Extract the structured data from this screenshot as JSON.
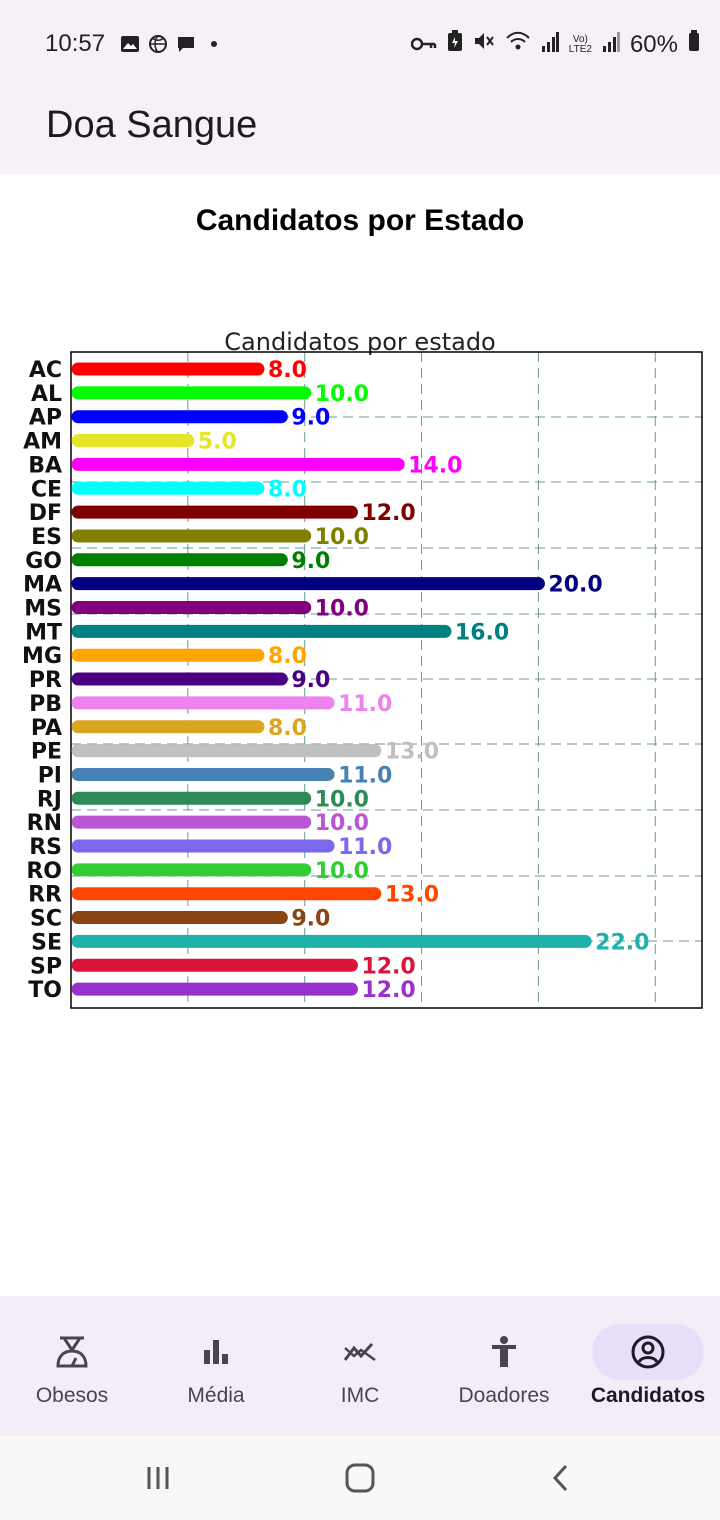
{
  "status_bar": {
    "time": "10:57",
    "battery": "60%",
    "icons": [
      "image-icon",
      "basketball-icon",
      "chat-icon",
      "dot-icon",
      "key-icon",
      "battery-saver-icon",
      "mute-icon",
      "wifi-icon",
      "signal-icon",
      "volte-icon",
      "signal2-icon",
      "battery-icon"
    ]
  },
  "app": {
    "title": "Doa Sangue"
  },
  "page": {
    "title": "Candidatos por Estado"
  },
  "chart_data": {
    "type": "bar",
    "orientation": "horizontal",
    "title": "Candidatos por estado",
    "categories": [
      "AC",
      "AL",
      "AP",
      "AM",
      "BA",
      "CE",
      "DF",
      "ES",
      "GO",
      "MA",
      "MS",
      "MT",
      "MG",
      "PR",
      "PB",
      "PA",
      "PE",
      "PI",
      "RJ",
      "RN",
      "RS",
      "RO",
      "RR",
      "SC",
      "SE",
      "SP",
      "TO"
    ],
    "values": [
      8,
      10,
      9,
      5,
      14,
      8,
      12,
      10,
      9,
      20,
      10,
      16,
      8,
      9,
      11,
      8,
      13,
      11,
      10,
      10,
      11,
      10,
      13,
      9,
      22,
      12,
      12
    ],
    "value_labels": [
      "8.0",
      "10.0",
      "9.0",
      "5.0",
      "14.0",
      "8.0",
      "12.0",
      "10.0",
      "9.0",
      "20.0",
      "10.0",
      "16.0",
      "8.0",
      "9.0",
      "11.0",
      "8.0",
      "13.0",
      "11.0",
      "10.0",
      "10.0",
      "11.0",
      "10.0",
      "13.0",
      "9.0",
      "22.0",
      "12.0",
      "12.0"
    ],
    "colors": [
      "#ff0000",
      "#00ff00",
      "#0000ff",
      "#e5e52a",
      "#ff00ff",
      "#00ffff",
      "#800000",
      "#808000",
      "#008000",
      "#000080",
      "#800080",
      "#008080",
      "#ffa500",
      "#4b0082",
      "#ee82ee",
      "#daa520",
      "#c0c0c0",
      "#4682b4",
      "#2e8b57",
      "#ba55d3",
      "#7b68ee",
      "#32cd32",
      "#ff4500",
      "#8b4513",
      "#20b2aa",
      "#dc143c",
      "#9932cc"
    ],
    "xlim": [
      0,
      27
    ],
    "grid": true,
    "grid_style": "dashed"
  },
  "bottom_nav": {
    "items": [
      {
        "label": "Obesos",
        "icon": "scale-icon"
      },
      {
        "label": "Média",
        "icon": "bar-chart-icon"
      },
      {
        "label": "IMC",
        "icon": "trending-icon"
      },
      {
        "label": "Doadores",
        "icon": "person-icon"
      },
      {
        "label": "Candidatos",
        "icon": "account-circle-icon"
      }
    ],
    "active": "Candidatos"
  },
  "system_nav": {
    "buttons": [
      "recent-apps-icon",
      "home-icon",
      "back-icon"
    ]
  }
}
